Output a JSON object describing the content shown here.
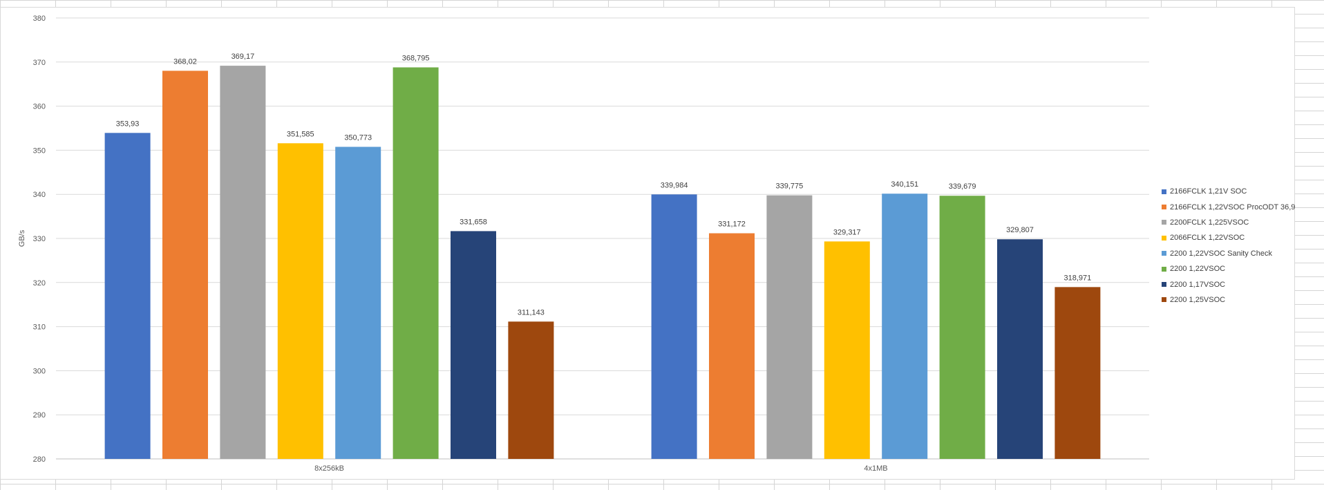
{
  "chart_data": {
    "type": "bar",
    "title": "",
    "xlabel": "",
    "ylabel": "GB/s",
    "ylim": [
      280,
      380
    ],
    "yticks": [
      280,
      290,
      300,
      310,
      320,
      330,
      340,
      350,
      360,
      370,
      380
    ],
    "grid": true,
    "legend_position": "right",
    "categories": [
      "8x256kB",
      "4x1MB"
    ],
    "series": [
      {
        "name": "2166FCLK 1,21V SOC",
        "color": "#4472c4",
        "values": [
          353.93,
          339.984
        ],
        "labels": [
          "353,93",
          "339,984"
        ]
      },
      {
        "name": "2166FCLK 1,22VSOC ProcODT 36,9",
        "color": "#ed7d31",
        "values": [
          368.02,
          331.172
        ],
        "labels": [
          "368,02",
          "331,172"
        ]
      },
      {
        "name": "2200FCLK 1,225VSOC",
        "color": "#a5a5a5",
        "values": [
          369.17,
          339.775
        ],
        "labels": [
          "369,17",
          "339,775"
        ]
      },
      {
        "name": "2066FCLK 1,22VSOC",
        "color": "#ffc000",
        "values": [
          351.585,
          329.317
        ],
        "labels": [
          "351,585",
          "329,317"
        ]
      },
      {
        "name": "2200 1,22VSOC Sanity Check",
        "color": "#5b9bd5",
        "values": [
          350.773,
          340.151
        ],
        "labels": [
          "350,773",
          "340,151"
        ]
      },
      {
        "name": "2200 1,22VSOC",
        "color": "#70ad47",
        "values": [
          368.795,
          339.679
        ],
        "labels": [
          "368,795",
          "339,679"
        ]
      },
      {
        "name": "2200 1,17VSOC",
        "color": "#264478",
        "values": [
          331.658,
          329.807
        ],
        "labels": [
          "331,658",
          "329,807"
        ]
      },
      {
        "name": "2200 1,25VSOC",
        "color": "#9e480e",
        "values": [
          311.143,
          318.971
        ],
        "labels": [
          "311,143",
          "318,971"
        ]
      }
    ]
  }
}
